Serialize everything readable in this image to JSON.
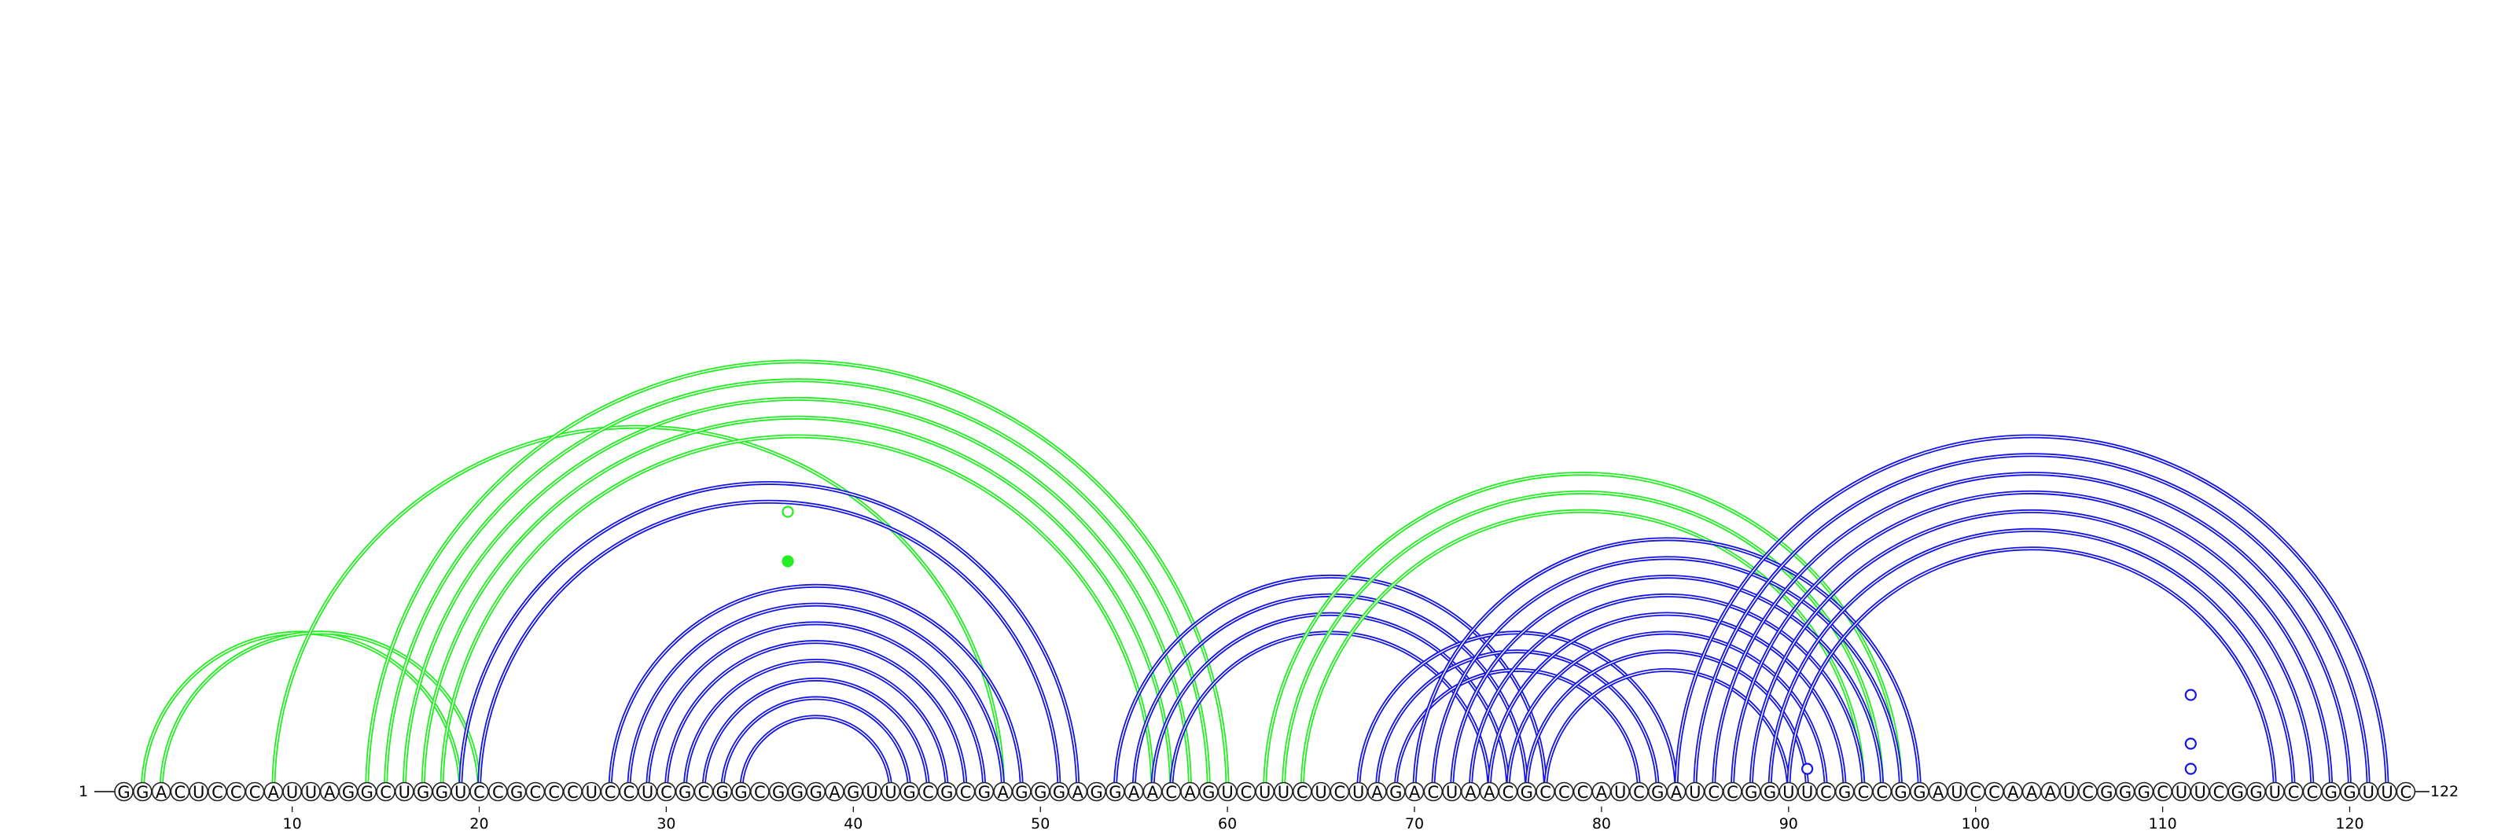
{
  "sequence": "GGACUCCCAUUAGGCUGGUCCGCCCUCCUCGCGGCGGGAGUUGCGCGAGGGAGGAACAGUCUUCUCUAGACUAACGCCCAUCGAUCCGGUUCGCCGGAUCCAAAUCGGGCUUCGGUCCGGUUC",
  "start_label": "1",
  "end_label": "122",
  "tick_labels": [
    "10",
    "20",
    "30",
    "40",
    "50",
    "60",
    "70",
    "80",
    "90",
    "100",
    "110",
    "120"
  ],
  "colors": {
    "blue": "#1414e6",
    "green": "#22ee22"
  },
  "helices": [
    {
      "color": "green",
      "pairs": [
        [
          2,
          19
        ],
        [
          3,
          20
        ],
        [
          9,
          48
        ]
      ]
    },
    {
      "color": "green",
      "pairs": [
        [
          14,
          60
        ],
        [
          15,
          59
        ],
        [
          16,
          58
        ],
        [
          17,
          57
        ],
        [
          18,
          56
        ]
      ]
    },
    {
      "color": "blue",
      "pairs": [
        [
          19,
          52
        ],
        [
          20,
          51
        ]
      ]
    },
    {
      "color": "blue",
      "pairs": [
        [
          27,
          49
        ],
        [
          28,
          48
        ],
        [
          29,
          47
        ],
        [
          30,
          46
        ],
        [
          31,
          45
        ],
        [
          32,
          44
        ],
        [
          33,
          43
        ],
        [
          34,
          42
        ]
      ]
    },
    {
      "color": "blue",
      "pairs": [
        [
          54,
          77
        ],
        [
          55,
          76
        ],
        [
          56,
          75
        ],
        [
          57,
          74
        ]
      ]
    },
    {
      "color": "green",
      "pairs": [
        [
          62,
          96
        ],
        [
          63,
          95
        ],
        [
          64,
          94
        ]
      ]
    },
    {
      "color": "blue",
      "pairs": [
        [
          67,
          84
        ],
        [
          68,
          83
        ],
        [
          69,
          82
        ]
      ]
    },
    {
      "color": "blue",
      "pairs": [
        [
          70,
          97
        ],
        [
          71,
          96
        ],
        [
          72,
          95
        ],
        [
          73,
          94
        ],
        [
          74,
          93
        ],
        [
          75,
          92
        ],
        [
          76,
          91
        ],
        [
          77,
          90
        ]
      ]
    },
    {
      "color": "blue",
      "pairs": [
        [
          84,
          122
        ],
        [
          85,
          121
        ],
        [
          86,
          120
        ],
        [
          87,
          119
        ],
        [
          88,
          118
        ],
        [
          89,
          117
        ],
        [
          90,
          116
        ]
      ]
    }
  ],
  "markers": [
    {
      "x": 36.5,
      "fill": "open",
      "color": "green",
      "level": "upper"
    },
    {
      "x": 36.5,
      "fill": "solid",
      "color": "green",
      "level": "lower"
    },
    {
      "x": 91,
      "fill": "open",
      "color": "blue",
      "level": "inner"
    },
    {
      "x": 111.5,
      "fill": "open",
      "color": "blue",
      "level": "inner"
    },
    {
      "x": 111.5,
      "fill": "open",
      "color": "blue",
      "level": "middle"
    },
    {
      "x": 111.5,
      "fill": "open",
      "color": "blue",
      "level": "outer"
    }
  ]
}
